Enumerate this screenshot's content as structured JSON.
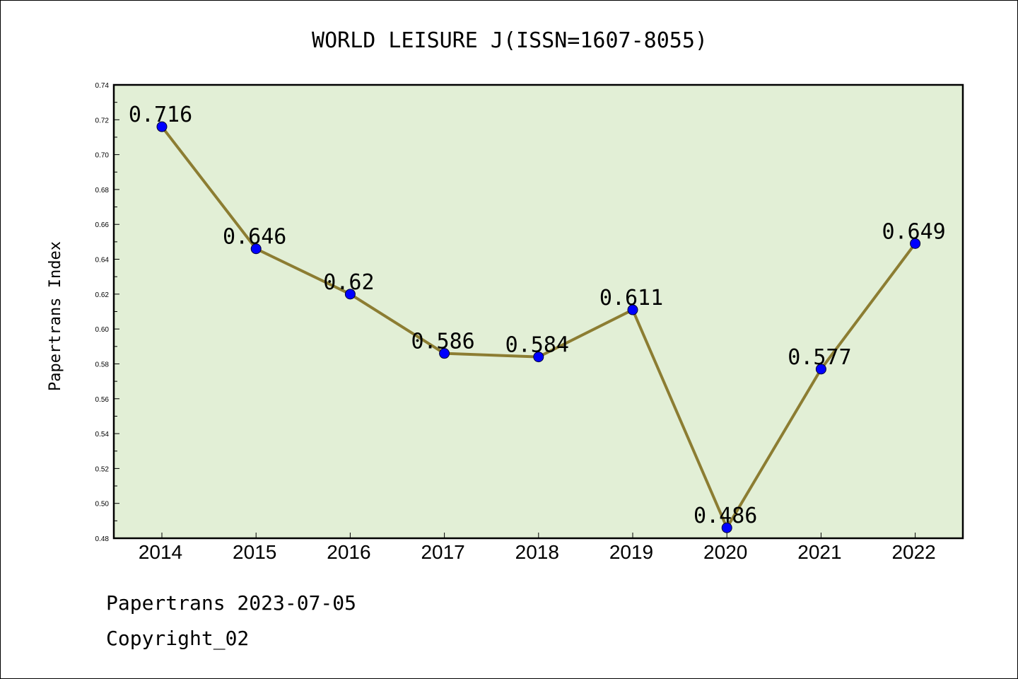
{
  "chart_data": {
    "type": "line",
    "title": "WORLD LEISURE J(ISSN=1607-8055)",
    "xlabel": "",
    "ylabel": "Papertrans Index",
    "categories": [
      "2014",
      "2015",
      "2016",
      "2017",
      "2018",
      "2019",
      "2020",
      "2021",
      "2022"
    ],
    "values": [
      0.716,
      0.646,
      0.62,
      0.586,
      0.584,
      0.611,
      0.486,
      0.577,
      0.649
    ],
    "data_labels": [
      "0.716",
      "0.646",
      "0.62",
      "0.586",
      "0.584",
      "0.611",
      "0.486",
      "0.577",
      "0.649"
    ],
    "ylim": [
      0.48,
      0.74
    ],
    "yticks": [
      "0.48",
      "0.50",
      "0.52",
      "0.54",
      "0.56",
      "0.58",
      "0.60",
      "0.62",
      "0.64",
      "0.66",
      "0.68",
      "0.70",
      "0.72",
      "0.74"
    ],
    "grid": false,
    "colors": {
      "plot_background": "#e2efd6",
      "line": "#8c7d32",
      "marker": "#0000ff"
    }
  },
  "footer": {
    "line1": "Papertrans 2023-07-05",
    "line2": "Copyright_02"
  }
}
